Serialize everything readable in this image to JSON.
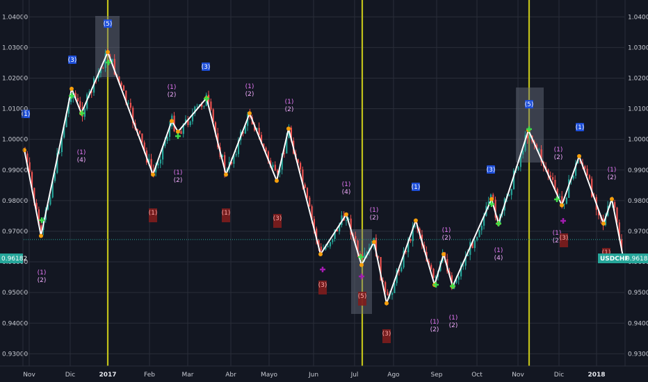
{
  "symbol": "USDCHF",
  "last_price": "0.96182",
  "colors": {
    "background": "#131722",
    "grid": "#2a2e39",
    "up": "#26a69a",
    "down": "#ef5350",
    "zigzag": "#ffffff",
    "vline": "#c2c21a",
    "price_line": "#26a69a"
  },
  "chart_data": {
    "type": "candlestick",
    "x_labels": [
      "Nov",
      "Dic",
      "2017",
      "Feb",
      "Mar",
      "Abr",
      "Mayo",
      "Jun",
      "Jul",
      "Ago",
      "Sep",
      "Oct",
      "Nov",
      "Dic",
      "2018"
    ],
    "bold_x_labels": [
      "2017",
      "2018"
    ],
    "y_ticks": [
      "1.04000",
      "1.03000",
      "1.02000",
      "1.01000",
      "1.00000",
      "0.99000",
      "0.98000",
      "0.97000",
      "0.96000",
      "0.95000",
      "0.94000",
      "0.93000"
    ],
    "y_range": [
      0.926,
      1.0455
    ],
    "vertical_markers": [
      "2017",
      "Jul",
      "Nov"
    ],
    "zigzag": [
      {
        "x": "Nov",
        "y": 0.9965
      },
      {
        "x": "Nov",
        "y": 0.9685
      },
      {
        "x": "Dic",
        "y": 1.0165
      },
      {
        "x": "Dic",
        "y": 1.0085
      },
      {
        "x": "2017",
        "y": 1.0285
      },
      {
        "x": "Feb",
        "y": 0.9885
      },
      {
        "x": "Mar",
        "y": 1.006
      },
      {
        "x": "Mar",
        "y": 1.0025
      },
      {
        "x": "Mar",
        "y": 1.0135
      },
      {
        "x": "Abr",
        "y": 0.9885
      },
      {
        "x": "Abr",
        "y": 1.0085
      },
      {
        "x": "Mayo",
        "y": 0.9865
      },
      {
        "x": "Mayo",
        "y": 1.0035
      },
      {
        "x": "Jun",
        "y": 0.9625
      },
      {
        "x": "Jul",
        "y": 0.9755
      },
      {
        "x": "Jul",
        "y": 0.959
      },
      {
        "x": "Jul",
        "y": 0.9665
      },
      {
        "x": "Ago",
        "y": 0.9465
      },
      {
        "x": "Ago",
        "y": 0.9735
      },
      {
        "x": "Sep",
        "y": 0.9525
      },
      {
        "x": "Sep",
        "y": 0.9625
      },
      {
        "x": "Sep",
        "y": 0.952
      },
      {
        "x": "Oct",
        "y": 0.9805
      },
      {
        "x": "Oct",
        "y": 0.9725
      },
      {
        "x": "Nov",
        "y": 1.003
      },
      {
        "x": "Dic",
        "y": 0.9785
      },
      {
        "x": "Dic",
        "y": 0.9945
      },
      {
        "x": "2018",
        "y": 0.9725
      },
      {
        "x": "2018",
        "y": 0.9805
      },
      {
        "x": "2018",
        "y": 0.9618
      }
    ],
    "wave_labels": [
      {
        "text": "(1)",
        "style": "blue"
      },
      {
        "text": "(3)",
        "style": "blue"
      },
      {
        "text": "(5)",
        "style": "blue"
      },
      {
        "text": "(3)",
        "style": "blue"
      },
      {
        "text": "(1)",
        "style": "blue"
      },
      {
        "text": "(3)",
        "style": "blue"
      },
      {
        "text": "(5)",
        "style": "blue"
      },
      {
        "text": "(1)",
        "style": "blue"
      },
      {
        "text": "(1)",
        "style": "pair"
      },
      {
        "text": "(2)",
        "style": "pair"
      },
      {
        "text": "(4)",
        "style": "pair"
      },
      {
        "text": "(3)",
        "style": "red"
      },
      {
        "text": "(5)",
        "style": "red"
      }
    ]
  }
}
